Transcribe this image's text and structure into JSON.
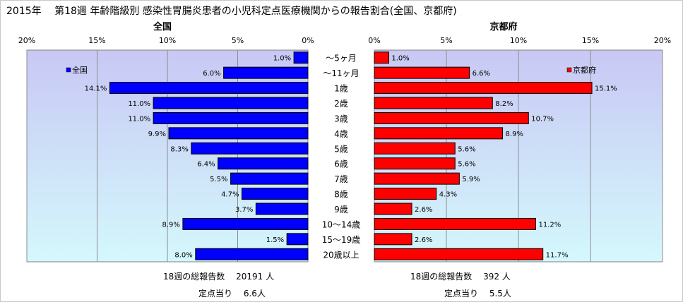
{
  "title": "2015年　 第18週 年齢階級別 感染性胃腸炎患者の小児科定点医療機関からの報告割合(全国、京都府)",
  "chart_data": [
    {
      "type": "bar",
      "orientation": "horizontal",
      "direction": "right-to-left",
      "heading": "全国",
      "xlim": [
        0,
        20
      ],
      "xticks": [
        "20%",
        "15%",
        "10%",
        "5%",
        "0%"
      ],
      "categories": [
        "～5ヶ月",
        "～11ヶ月",
        "1歳",
        "2歳",
        "3歳",
        "4歳",
        "5歳",
        "6歳",
        "7歳",
        "8歳",
        "9歳",
        "10～14歳",
        "15～19歳",
        "20歳以上"
      ],
      "series": [
        {
          "name": "全国",
          "color": "#0000ff",
          "values": [
            1.0,
            6.0,
            14.1,
            11.0,
            11.0,
            9.9,
            8.3,
            6.4,
            5.5,
            4.7,
            3.7,
            8.9,
            1.5,
            8.0
          ],
          "labels": [
            "1.0%",
            "6.0%",
            "14.1%",
            "11.0%",
            "11.0%",
            "9.9%",
            "8.3%",
            "6.4%",
            "5.5%",
            "4.7%",
            "3.7%",
            "8.9%",
            "1.5%",
            "8.0%"
          ]
        }
      ],
      "legend": "top-left",
      "grid": true
    },
    {
      "type": "bar",
      "orientation": "horizontal",
      "direction": "left-to-right",
      "heading": "京都府",
      "xlim": [
        0,
        20
      ],
      "xticks": [
        "0%",
        "5%",
        "10%",
        "15%",
        "20%"
      ],
      "categories": [
        "～5ヶ月",
        "～11ヶ月",
        "1歳",
        "2歳",
        "3歳",
        "4歳",
        "5歳",
        "6歳",
        "7歳",
        "8歳",
        "9歳",
        "10～14歳",
        "15～19歳",
        "20歳以上"
      ],
      "series": [
        {
          "name": "京都府",
          "color": "#ff0000",
          "values": [
            1.0,
            6.6,
            15.1,
            8.2,
            10.7,
            8.9,
            5.6,
            5.6,
            5.9,
            4.3,
            2.6,
            11.2,
            2.6,
            11.7
          ],
          "labels": [
            "1.0%",
            "6.6%",
            "15.1%",
            "8.2%",
            "10.7%",
            "8.9%",
            "5.6%",
            "5.6%",
            "5.9%",
            "4.3%",
            "2.6%",
            "11.2%",
            "2.6%",
            "11.7%"
          ]
        }
      ],
      "legend": "top-right",
      "grid": true
    }
  ],
  "footer": {
    "national": {
      "total_text": "18週の総報告数　 20191 人",
      "per_site_text": "定点当り　 6.6人"
    },
    "kyoto": {
      "total_text": "18週の総報告数　 392 人",
      "per_site_text": "定点当り　 5.5人"
    }
  },
  "colors": {
    "plot_top": "#c8c8f4",
    "plot_bottom": "#d4f8fc",
    "grid": "#8c8c8c",
    "bar_outline": "#000000"
  }
}
